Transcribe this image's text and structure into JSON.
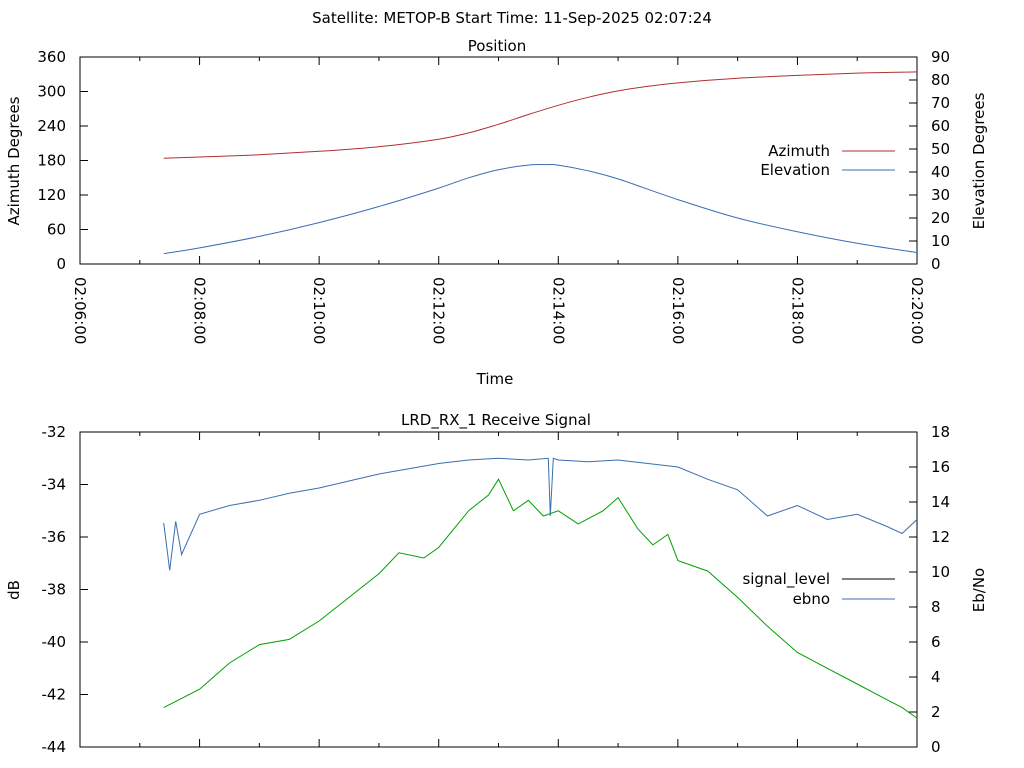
{
  "header": {
    "title": "Satellite: METOP-B    Start Time: 11-Sep-2025 02:07:24"
  },
  "colors": {
    "azimuth": "#b03030",
    "elevation": "#3a6fb0",
    "signal_level": "#00a000",
    "ebno": "#3a6fb0"
  },
  "chart_data": [
    {
      "type": "line",
      "title": "Position",
      "xlabel": "Time",
      "ylabel": "Azimuth Degrees",
      "y2label": "Elevation Degrees",
      "x_ticks": [
        "02:06:00",
        "02:08:00",
        "02:10:00",
        "02:12:00",
        "02:14:00",
        "02:16:00",
        "02:18:00",
        "02:20:00"
      ],
      "x_minor_ticks": [
        "02:07:00",
        "02:09:00",
        "02:11:00",
        "02:13:00",
        "02:15:00",
        "02:17:00",
        "02:19:00"
      ],
      "xlim": [
        "02:06:00",
        "02:20:00"
      ],
      "ylim": [
        0,
        360
      ],
      "y_ticks": [
        0,
        60,
        120,
        180,
        240,
        300,
        360
      ],
      "y2lim": [
        0,
        90
      ],
      "y2_ticks": [
        0,
        10,
        20,
        30,
        40,
        50,
        60,
        70,
        80,
        90
      ],
      "legend_position": "right",
      "series": [
        {
          "name": "Azimuth",
          "axis": "y1",
          "color": "#b03030",
          "x": [
            "02:07:24",
            "02:08:00",
            "02:09:00",
            "02:10:00",
            "02:11:00",
            "02:12:00",
            "02:12:30",
            "02:13:00",
            "02:13:30",
            "02:14:00",
            "02:14:30",
            "02:15:00",
            "02:15:30",
            "02:16:00",
            "02:17:00",
            "02:18:00",
            "02:19:00",
            "02:20:00"
          ],
          "y": [
            184,
            186,
            190,
            196,
            204,
            217,
            228,
            243,
            260,
            276,
            290,
            301,
            309,
            315,
            323,
            328,
            332,
            334
          ]
        },
        {
          "name": "Elevation",
          "axis": "y2",
          "color": "#3a6fb0",
          "x": [
            "02:07:24",
            "02:08:00",
            "02:09:00",
            "02:10:00",
            "02:11:00",
            "02:12:00",
            "02:12:30",
            "02:13:00",
            "02:13:30",
            "02:13:50",
            "02:14:00",
            "02:14:30",
            "02:15:00",
            "02:16:00",
            "02:17:00",
            "02:18:00",
            "02:19:00",
            "02:20:00"
          ],
          "y": [
            4.5,
            7,
            12,
            18,
            25,
            33,
            37.5,
            41,
            43,
            43.2,
            43,
            40.5,
            37,
            28,
            20,
            14,
            9,
            5
          ]
        }
      ]
    },
    {
      "type": "line",
      "title": "LRD_RX_1 Receive Signal",
      "xlabel": "",
      "ylabel": "dB",
      "y2label": "Eb/No",
      "ylim": [
        -44,
        -32
      ],
      "y_ticks": [
        -44,
        -42,
        -40,
        -38,
        -36,
        -34,
        -32
      ],
      "y2lim": [
        0,
        18
      ],
      "y2_ticks": [
        0,
        2,
        4,
        6,
        8,
        10,
        12,
        14,
        16,
        18
      ],
      "xlim": [
        "02:06:00",
        "02:20:00"
      ],
      "legend_position": "right",
      "series": [
        {
          "name": "signal_level",
          "axis": "y1",
          "color": "#00a000",
          "x": [
            "02:07:24",
            "02:08:00",
            "02:08:30",
            "02:09:00",
            "02:09:30",
            "02:10:00",
            "02:10:30",
            "02:11:00",
            "02:11:20",
            "02:11:45",
            "02:12:00",
            "02:12:30",
            "02:12:50",
            "02:13:00",
            "02:13:15",
            "02:13:30",
            "02:13:45",
            "02:14:00",
            "02:14:20",
            "02:14:45",
            "02:15:00",
            "02:15:20",
            "02:15:35",
            "02:15:50",
            "02:16:00",
            "02:16:30",
            "02:17:00",
            "02:17:30",
            "02:18:00",
            "02:18:30",
            "02:19:00",
            "02:19:30",
            "02:19:45",
            "02:20:00"
          ],
          "y": [
            -42.5,
            -41.8,
            -40.8,
            -40.1,
            -39.9,
            -39.2,
            -38.3,
            -37.4,
            -36.6,
            -36.8,
            -36.4,
            -35.0,
            -34.4,
            -33.8,
            -35.0,
            -34.6,
            -35.2,
            -35.0,
            -35.5,
            -35.0,
            -34.5,
            -35.7,
            -36.3,
            -35.9,
            -36.9,
            -37.3,
            -38.3,
            -39.4,
            -40.4,
            -41.0,
            -41.6,
            -42.2,
            -42.5,
            -42.9
          ]
        },
        {
          "name": "ebno",
          "axis": "y2",
          "color": "#3a6fb0",
          "x": [
            "02:07:24",
            "02:07:30",
            "02:07:36",
            "02:07:42",
            "02:08:00",
            "02:08:30",
            "02:09:00",
            "02:09:30",
            "02:10:00",
            "02:10:30",
            "02:11:00",
            "02:11:30",
            "02:12:00",
            "02:12:30",
            "02:13:00",
            "02:13:30",
            "02:13:50",
            "02:13:52",
            "02:13:55",
            "02:14:00",
            "02:14:30",
            "02:15:00",
            "02:15:30",
            "02:16:00",
            "02:16:30",
            "02:17:00",
            "02:17:30",
            "02:18:00",
            "02:18:30",
            "02:19:00",
            "02:19:30",
            "02:19:45",
            "02:20:00"
          ],
          "y": [
            12.8,
            10.1,
            12.9,
            11.0,
            13.3,
            13.8,
            14.1,
            14.5,
            14.8,
            15.2,
            15.6,
            15.9,
            16.2,
            16.4,
            16.5,
            16.4,
            16.5,
            13.2,
            16.5,
            16.4,
            16.3,
            16.4,
            16.2,
            16.0,
            15.3,
            14.7,
            13.2,
            13.8,
            13.0,
            13.3,
            12.6,
            12.2,
            13.0
          ]
        }
      ]
    }
  ]
}
